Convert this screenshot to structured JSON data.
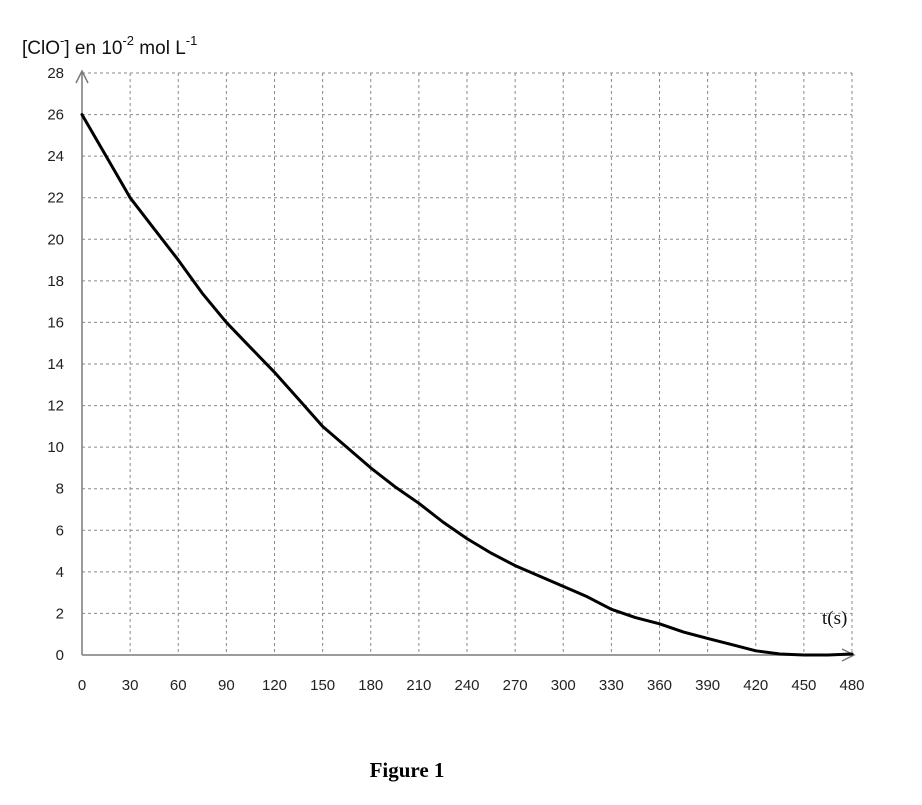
{
  "chart_data": {
    "type": "line",
    "ylabel": {
      "parts": [
        {
          "text": "[ClO",
          "sup": false
        },
        {
          "text": "-",
          "sup": true
        },
        {
          "text": "] en 10",
          "sup": false
        },
        {
          "text": "-2",
          "sup": true
        },
        {
          "text": " mol L",
          "sup": false
        },
        {
          "text": "-1",
          "sup": true
        }
      ]
    },
    "xlabel": "t(s)",
    "xlim": [
      0,
      480
    ],
    "ylim": [
      0,
      28
    ],
    "xticks": [
      0,
      30,
      60,
      90,
      120,
      150,
      180,
      210,
      240,
      270,
      300,
      330,
      360,
      390,
      420,
      450,
      480
    ],
    "yticks": [
      0,
      2,
      4,
      6,
      8,
      10,
      12,
      14,
      16,
      18,
      20,
      22,
      24,
      26,
      28
    ],
    "grid": true,
    "line_color": "#000000",
    "series": [
      {
        "x": [
          0,
          15,
          30,
          45,
          60,
          75,
          90,
          105,
          120,
          135,
          150,
          165,
          180,
          195,
          210,
          225,
          240,
          255,
          270,
          285,
          300,
          315,
          330,
          345,
          360,
          375,
          390,
          405,
          420,
          435,
          450,
          465,
          480
        ],
        "y": [
          26.0,
          24.0,
          22.0,
          20.5,
          19.0,
          17.4,
          16.0,
          14.8,
          13.6,
          12.3,
          11.0,
          10.0,
          9.0,
          8.1,
          7.3,
          6.4,
          5.6,
          4.9,
          4.3,
          3.8,
          3.3,
          2.8,
          2.2,
          1.8,
          1.5,
          1.1,
          0.8,
          0.5,
          0.2,
          0.05,
          0.0,
          0.0,
          0.05
        ]
      }
    ]
  },
  "caption": "Figure 1"
}
